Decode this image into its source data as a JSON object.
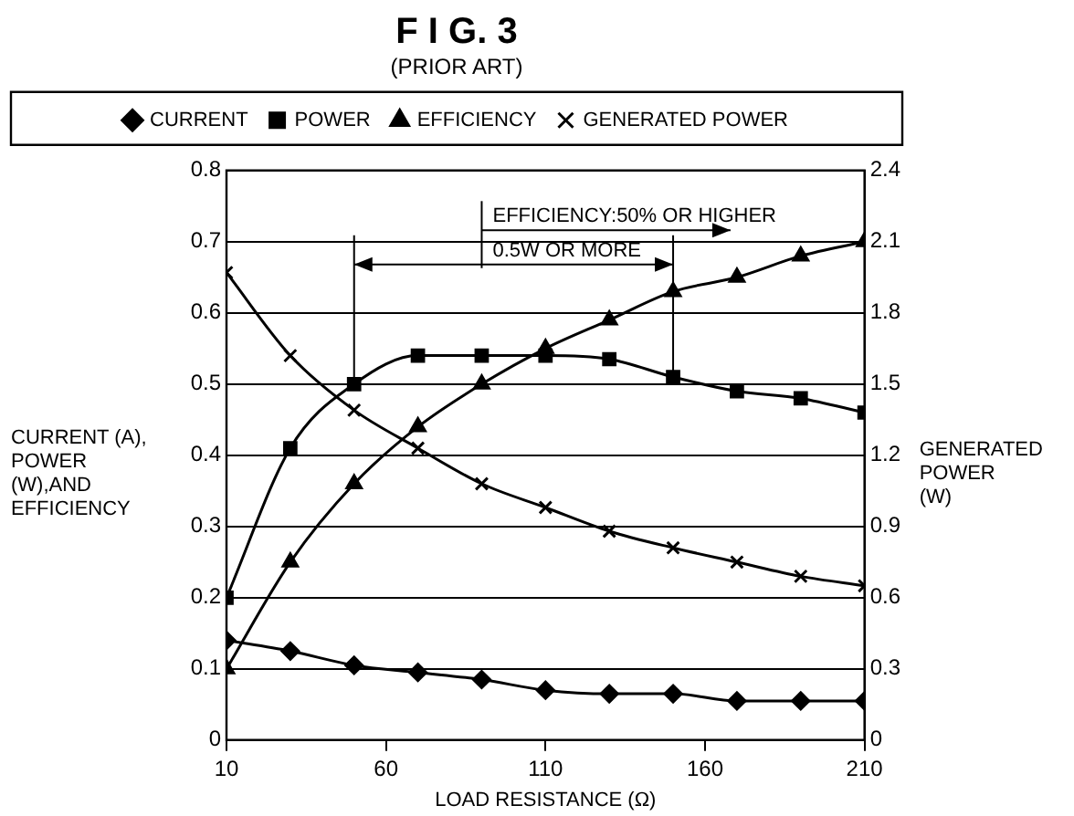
{
  "chart_data": {
    "type": "line",
    "title": "F I G. 3",
    "subtitle": "(PRIOR ART)",
    "xlabel": "LOAD RESISTANCE (Ω)",
    "ylabel": "CURRENT (A), POWER (W),AND EFFICIENCY",
    "y2label": "GENERATED POWER (W)",
    "x": [
      10,
      30,
      50,
      70,
      90,
      110,
      130,
      150,
      170,
      190,
      210
    ],
    "series": [
      {
        "name": "CURRENT",
        "color": "#000000",
        "marker": "diamond",
        "values": [
          0.14,
          0.125,
          0.105,
          0.095,
          0.085,
          0.07,
          0.065,
          0.065,
          0.055,
          0.055,
          0.055
        ]
      },
      {
        "name": "POWER",
        "color": "#000000",
        "marker": "square",
        "values": [
          0.2,
          0.41,
          0.5,
          0.54,
          0.54,
          0.54,
          0.535,
          0.51,
          0.49,
          0.48,
          0.46
        ]
      },
      {
        "name": "EFFICIENCY",
        "color": "#000000",
        "marker": "triangle",
        "values": [
          0.1,
          0.25,
          0.36,
          0.44,
          0.5,
          0.55,
          0.59,
          0.63,
          0.65,
          0.68,
          0.7
        ]
      },
      {
        "name": "GENERATED POWER",
        "color": "#000000",
        "marker": "cross",
        "axis": "y2",
        "values": [
          1.97,
          1.62,
          1.39,
          1.23,
          1.08,
          0.98,
          0.88,
          0.81,
          0.75,
          0.69,
          0.65
        ]
      }
    ],
    "annotations": [
      "EFFICIENCY:50% OR HIGHER",
      "0.5W OR MORE"
    ],
    "ref_lines": [
      {
        "axis": "x",
        "value": 90
      },
      {
        "axis": "x",
        "value": 50
      },
      {
        "axis": "x",
        "value": 150
      }
    ],
    "xlim": [
      10,
      210
    ],
    "xticks": [
      10,
      60,
      110,
      160,
      210
    ],
    "ylim": [
      0,
      0.8
    ],
    "yticks": [
      0,
      0.1,
      0.2,
      0.3,
      0.4,
      0.5,
      0.6,
      0.7,
      0.8
    ],
    "y2lim": [
      0,
      2.4
    ],
    "y2ticks": [
      0,
      0.3,
      0.6,
      0.9,
      1.2,
      1.5,
      1.8,
      2.1,
      2.4
    ],
    "grid": "y",
    "legend": "top",
    "line_style": "solid"
  }
}
